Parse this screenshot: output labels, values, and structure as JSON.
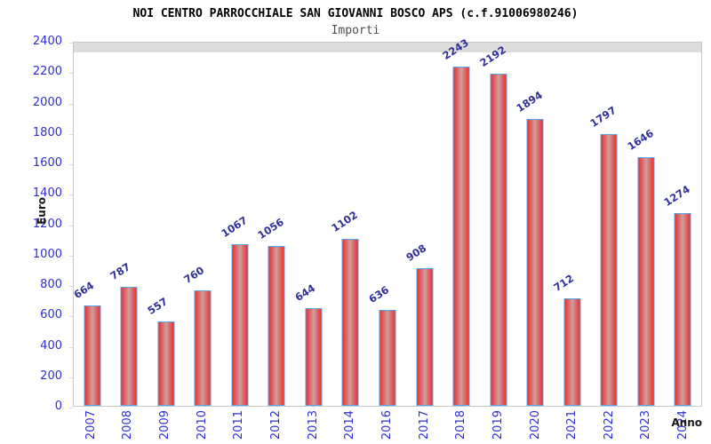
{
  "chart_data": {
    "type": "bar",
    "title": "NOI CENTRO PARROCCHIALE SAN GIOVANNI BOSCO APS (c.f.91006980246)",
    "subtitle": "Importi",
    "xlabel": "Anno",
    "ylabel": "Euro",
    "categories": [
      "2007",
      "2008",
      "2009",
      "2010",
      "2011",
      "2012",
      "2013",
      "2014",
      "2016",
      "2017",
      "2018",
      "2019",
      "2020",
      "2021",
      "2022",
      "2023",
      "2024"
    ],
    "values": [
      664,
      787,
      557,
      760,
      1067,
      1056,
      644,
      1102,
      636,
      908,
      2243,
      2192,
      1894,
      712,
      1797,
      1646,
      1274
    ],
    "ylim": [
      0,
      2400
    ],
    "yticks": [
      0,
      200,
      400,
      600,
      800,
      1000,
      1200,
      1400,
      1600,
      1800,
      2000,
      2200,
      2400
    ],
    "grid": true,
    "legend_position": "none",
    "colors": {
      "bar_edge": "#e93030",
      "bar_center": "#cf9e9e",
      "bar_border": "#54a4e8",
      "tick_label": "#2e2ed6",
      "value_label": "#30309a",
      "band_gray": "#f3f3f3",
      "grid_line": "#dcdcdc",
      "plot_border": "#c8c8c8"
    }
  }
}
